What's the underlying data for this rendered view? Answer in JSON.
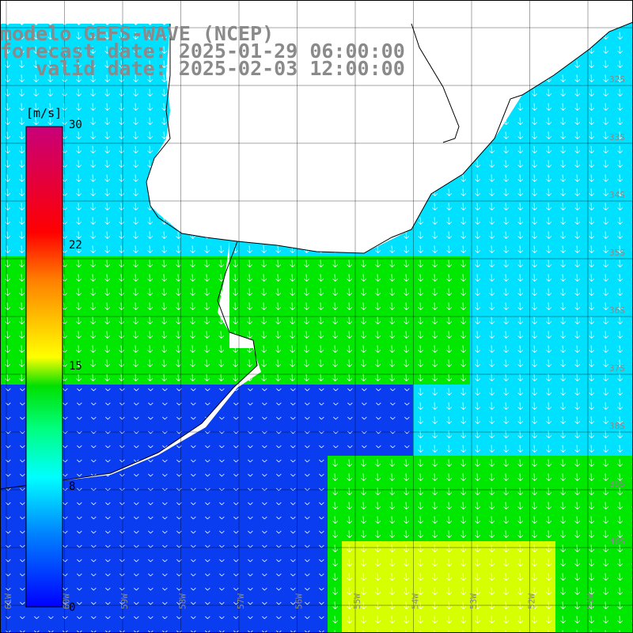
{
  "title": {
    "line1": "modelo GEFS-WAVE (NCEP)",
    "line2": "forecast date: 2025-01-29 06:00:00",
    "line3": "   valid date: 2025-02-03 12:00:00"
  },
  "legend": {
    "unit": "[m/s]",
    "ticks": [
      "30",
      "22",
      "15",
      "8",
      "0"
    ],
    "colors": [
      "#0000ff",
      "#00a0ff",
      "#00e6ff",
      "#00ff80",
      "#00e000",
      "#a0ff00",
      "#ffff00",
      "#ffa000",
      "#ff4000",
      "#ff0000",
      "#ff0050",
      "#c8007a"
    ]
  },
  "lat_labels": [
    "32S",
    "33S",
    "34S",
    "35S",
    "36S",
    "37S",
    "38S",
    "39S",
    "40S"
  ],
  "lon_labels": [
    "61W",
    "60W",
    "59W",
    "58W",
    "57W",
    "56W",
    "55W",
    "54W",
    "53W",
    "52W",
    "51W"
  ],
  "colors": {
    "ocean_low": "#0a3cf0",
    "ocean_mid": "#00e0ff",
    "ocean_high": "#00e800",
    "ocean_peak": "#d6ff00",
    "land": "#ffffff",
    "grid": "#000000",
    "title": "#8a8a8a"
  }
}
